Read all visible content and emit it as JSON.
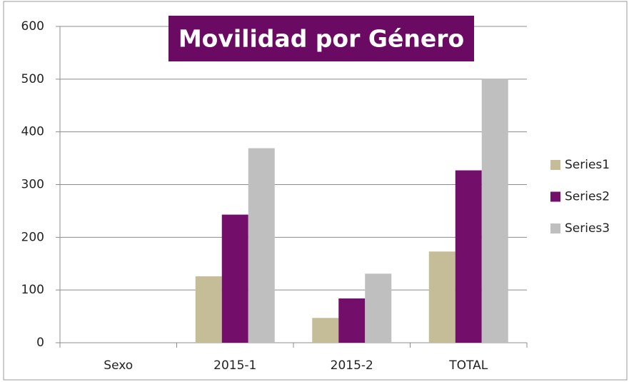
{
  "chart_data": {
    "type": "bar",
    "title": "Movilidad  por Género",
    "categories": [
      "Sexo",
      "2015-1",
      "2015-2",
      "TOTAL"
    ],
    "series": [
      {
        "name": "Series1",
        "color": "#c4bd97",
        "values": [
          null,
          126,
          47,
          173
        ]
      },
      {
        "name": "Series2",
        "color": "#730f6b",
        "values": [
          null,
          243,
          84,
          327
        ]
      },
      {
        "name": "Series3",
        "color": "#bfbfbf",
        "values": [
          null,
          369,
          131,
          500
        ]
      }
    ],
    "ylim": [
      0,
      600
    ],
    "yticks": [
      0,
      100,
      200,
      300,
      400,
      500,
      600
    ],
    "grid": true,
    "legend": "right"
  }
}
